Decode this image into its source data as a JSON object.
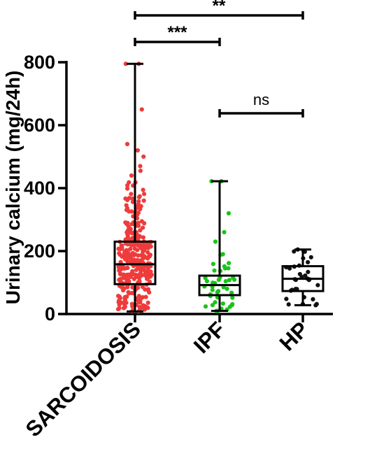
{
  "chart_data": {
    "type": "box",
    "ylabel": "Urinary calcium (mg/24h)",
    "ylim": [
      0,
      800
    ],
    "yticks": [
      0,
      200,
      400,
      600,
      800
    ],
    "categories": [
      "SARCOIDOSIS",
      "IPF",
      "HP"
    ],
    "point_colors": [
      "#ef3b3b",
      "#19c419",
      "#111111"
    ],
    "boxes": [
      {
        "category": "SARCOIDOSIS",
        "min": 8,
        "q1": 95,
        "median": 158,
        "q3": 230,
        "max": 795
      },
      {
        "category": "IPF",
        "min": 10,
        "q1": 60,
        "median": 92,
        "q3": 122,
        "max": 422
      },
      {
        "category": "HP",
        "min": 28,
        "q1": 73,
        "median": 112,
        "q3": 152,
        "max": 205
      }
    ],
    "points": [
      {
        "category": "SARCOIDOSIS",
        "count": 330,
        "notable_values": [
          795,
          650,
          540,
          520,
          500,
          470,
          455,
          440
        ]
      },
      {
        "category": "IPF",
        "count": 45,
        "notable_values": [
          422,
          320,
          260,
          230,
          190
        ]
      },
      {
        "category": "HP",
        "count": 30
      }
    ],
    "significance": [
      {
        "from": "SARCOIDOSIS",
        "to": "IPF",
        "label": "***"
      },
      {
        "from": "SARCOIDOSIS",
        "to": "HP",
        "label": "**"
      },
      {
        "from": "IPF",
        "to": "HP",
        "label": "ns"
      }
    ]
  }
}
